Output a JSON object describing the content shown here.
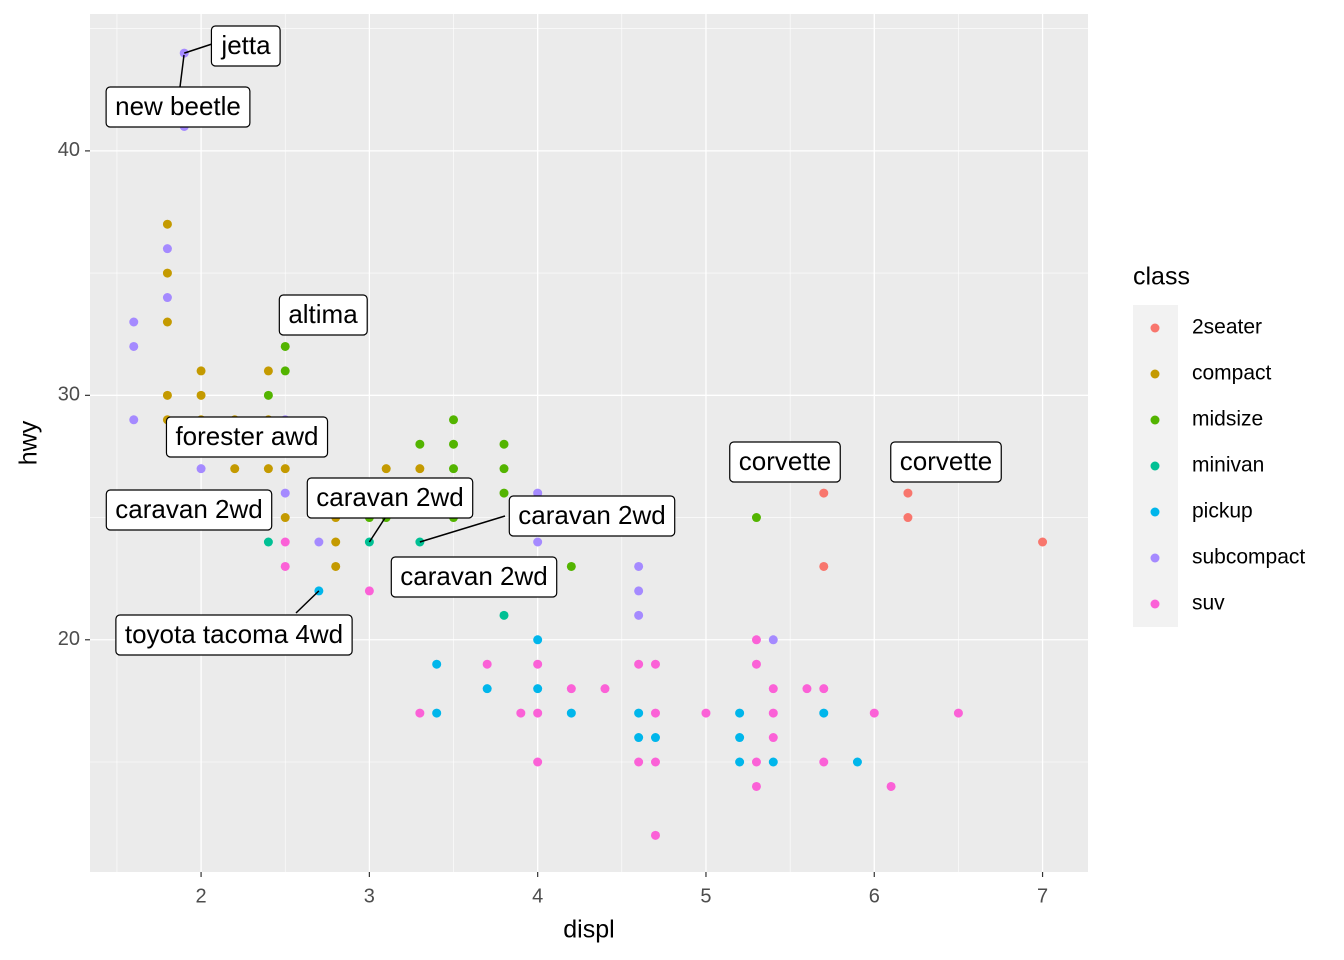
{
  "chart_data": {
    "type": "scatter",
    "x_label": "displ",
    "y_label": "hwy",
    "legend_title": "class",
    "legend_position": "right",
    "grid": true,
    "xlim": [
      1.34,
      7.27
    ],
    "ylim": [
      10.5,
      45.6
    ],
    "xticks": [
      2,
      3,
      4,
      5,
      6,
      7
    ],
    "yticks": [
      20,
      30,
      40
    ],
    "minor_xticks": [
      1.5,
      2.5,
      3.5,
      4.5,
      5.5,
      6.5
    ],
    "minor_yticks": [
      15,
      25,
      35,
      45
    ],
    "series": [
      {
        "name": "2seater",
        "color": "#F8766D",
        "x": [
          5.7,
          5.7,
          6.2,
          6.2,
          7.0
        ],
        "values": [
          26,
          23,
          26,
          25,
          24
        ]
      },
      {
        "name": "compact",
        "color": "#C49A00",
        "x": [
          1.8,
          1.8,
          1.8,
          1.8,
          1.8,
          2.0,
          2.0,
          2.0,
          2.2,
          2.2,
          2.4,
          2.4,
          2.4,
          2.5,
          2.5,
          2.8,
          2.8,
          2.8,
          3.1,
          3.3
        ],
        "values": [
          37,
          35,
          33,
          30,
          29,
          31,
          30,
          29,
          27,
          29,
          31,
          27,
          29,
          27,
          25,
          25,
          24,
          23,
          27,
          27
        ]
      },
      {
        "name": "midsize",
        "color": "#53B400",
        "x": [
          2.4,
          2.5,
          2.5,
          3.0,
          3.1,
          3.3,
          3.5,
          3.5,
          3.5,
          3.5,
          3.8,
          3.8,
          3.8,
          4.2,
          5.3
        ],
        "values": [
          30,
          32,
          31,
          25,
          25,
          28,
          29,
          28,
          27,
          25,
          28,
          27,
          26,
          23,
          25
        ]
      },
      {
        "name": "minivan",
        "color": "#00C094",
        "x": [
          2.4,
          3.0,
          3.3,
          3.8
        ],
        "values": [
          24,
          24,
          24,
          21
        ]
      },
      {
        "name": "pickup",
        "color": "#00B6EB",
        "x": [
          2.7,
          3.4,
          3.4,
          3.7,
          4.0,
          4.0,
          4.2,
          4.6,
          4.6,
          4.7,
          5.2,
          5.2,
          5.2,
          5.4,
          5.7,
          5.9
        ],
        "values": [
          22,
          19,
          17,
          18,
          20,
          18,
          17,
          17,
          16,
          16,
          17,
          16,
          15,
          15,
          17,
          15
        ]
      },
      {
        "name": "subcompact",
        "color": "#A58AFF",
        "x": [
          1.6,
          1.6,
          1.6,
          1.8,
          1.8,
          1.9,
          1.9,
          2.0,
          2.5,
          2.5,
          2.7,
          4.0,
          4.0,
          4.6,
          4.6,
          4.6,
          5.4
        ],
        "values": [
          33,
          32,
          29,
          36,
          34,
          44,
          41,
          27,
          26,
          29,
          24,
          26,
          24,
          23,
          22,
          21,
          20
        ]
      },
      {
        "name": "suv",
        "color": "#FB61D7",
        "x": [
          2.5,
          2.5,
          3.0,
          3.3,
          3.7,
          3.9,
          4.0,
          4.0,
          4.0,
          4.2,
          4.4,
          4.6,
          4.6,
          4.7,
          4.7,
          4.7,
          4.7,
          5.0,
          5.3,
          5.3,
          5.3,
          5.3,
          5.4,
          5.4,
          5.4,
          5.6,
          5.7,
          5.7,
          6.0,
          6.1,
          6.5
        ],
        "values": [
          24,
          23,
          22,
          17,
          19,
          17,
          19,
          17,
          15,
          18,
          18,
          19,
          15,
          19,
          17,
          15,
          12,
          17,
          20,
          19,
          15,
          14,
          18,
          17,
          16,
          18,
          18,
          15,
          17,
          14,
          17
        ]
      }
    ],
    "annotations": [
      {
        "text": "jetta",
        "x": 1.9,
        "y": 44
      },
      {
        "text": "new beetle",
        "x": 1.9,
        "y": 41
      },
      {
        "text": "altima",
        "x": 2.5,
        "y": 32
      },
      {
        "text": "forester awd",
        "x": 2.5,
        "y": 27
      },
      {
        "text": "corvette",
        "x": 5.7,
        "y": 26
      },
      {
        "text": "corvette",
        "x": 6.2,
        "y": 26
      },
      {
        "text": "caravan 2wd",
        "x": 2.4,
        "y": 24
      },
      {
        "text": "caravan 2wd",
        "x": 3.0,
        "y": 24
      },
      {
        "text": "caravan 2wd",
        "x": 3.3,
        "y": 24
      },
      {
        "text": "caravan 2wd",
        "x": 3.8,
        "y": 21
      },
      {
        "text": "toyota tacoma 4wd",
        "x": 2.7,
        "y": 22
      }
    ]
  }
}
